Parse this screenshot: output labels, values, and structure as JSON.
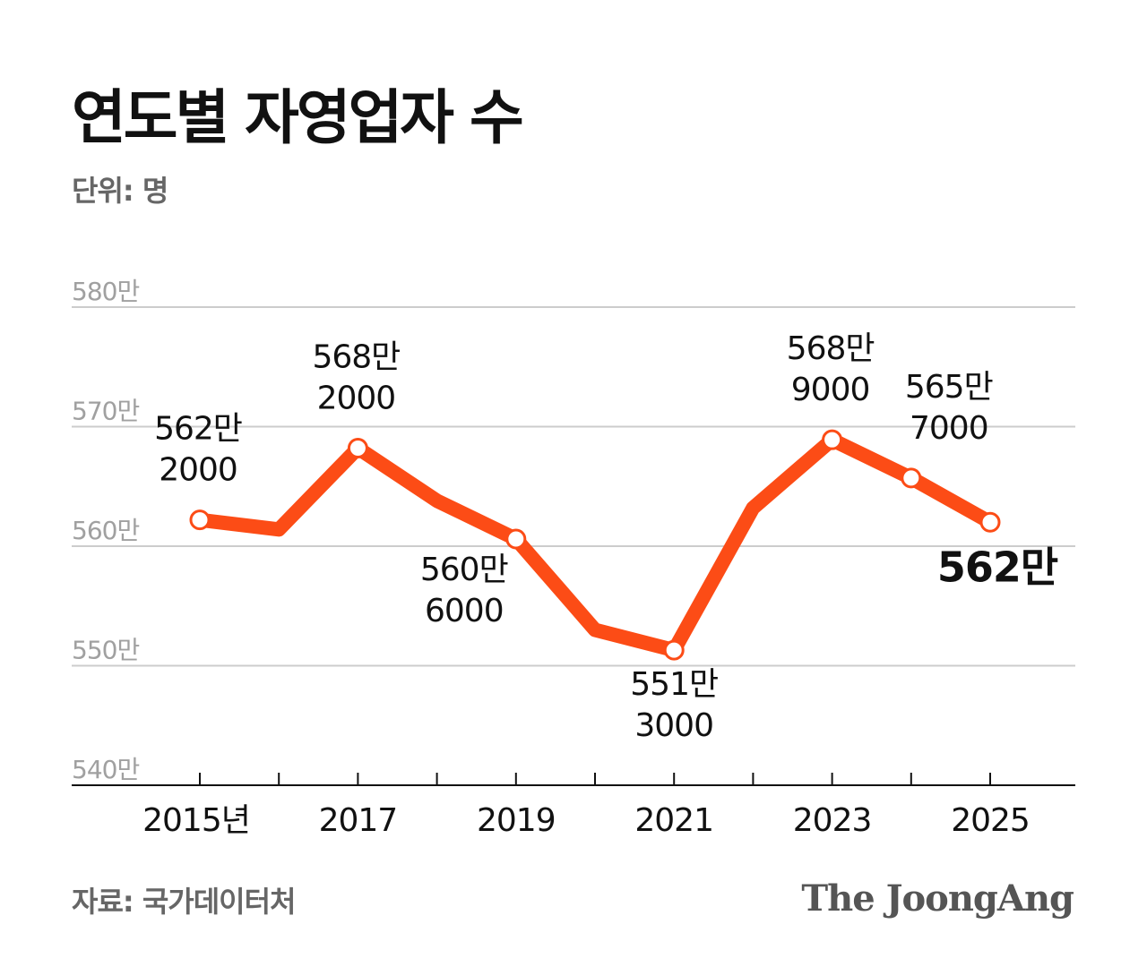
{
  "title": "연도별 자영업자 수",
  "unit": "단위: 명",
  "source": "자료: 국가데이터처",
  "logo": "The JoongAng",
  "colors": {
    "line": "#fc4c16",
    "grid": "#cccccc",
    "axis": "#111111",
    "tick_label": "#a0a0a0"
  },
  "chart_data": {
    "type": "line",
    "title": "연도별 자영업자 수",
    "ylabel": "단위: 명",
    "x": [
      2015,
      2016,
      2017,
      2018,
      2019,
      2020,
      2021,
      2022,
      2023,
      2024,
      2025
    ],
    "values": [
      5622000,
      5614000,
      5682000,
      5638000,
      5606000,
      5530000,
      5513000,
      5632000,
      5689000,
      5657000,
      5620000
    ],
    "xticks": [
      2015,
      2017,
      2019,
      2021,
      2023,
      2025
    ],
    "xtick_labels": [
      "2015년",
      "2017",
      "2019",
      "2021",
      "2023",
      "2025"
    ],
    "yticks": [
      5400000,
      5500000,
      5600000,
      5700000,
      5800000
    ],
    "ytick_labels": [
      "540만",
      "550만",
      "560만",
      "570만",
      "580만"
    ],
    "ylim": [
      5400000,
      5800000
    ],
    "xlim": [
      2014.35,
      2025.95
    ],
    "grid": true,
    "data_labels": [
      {
        "year": 2015,
        "lines": [
          "562만",
          "2000"
        ]
      },
      {
        "year": 2017,
        "lines": [
          "568만",
          "2000"
        ]
      },
      {
        "year": 2019,
        "lines": [
          "560만",
          "6000"
        ]
      },
      {
        "year": 2021,
        "lines": [
          "551만",
          "3000"
        ]
      },
      {
        "year": 2023,
        "lines": [
          "568만",
          "9000"
        ]
      },
      {
        "year": 2024,
        "lines": [
          "565만",
          "7000"
        ]
      },
      {
        "year": 2025,
        "lines": [
          "562만"
        ]
      }
    ]
  }
}
